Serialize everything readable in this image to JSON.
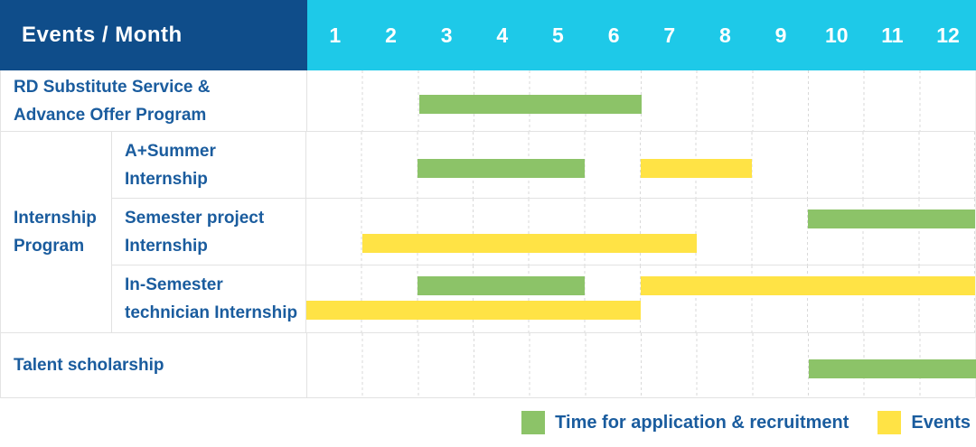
{
  "header": {
    "title": "Events / Month",
    "months": [
      "1",
      "2",
      "3",
      "4",
      "5",
      "6",
      "7",
      "8",
      "9",
      "10",
      "11",
      "12"
    ]
  },
  "colors": {
    "header_bg": "#0F4D8A",
    "months_bg": "#1EC9E8",
    "green": "#8CC368",
    "yellow": "#FFE345",
    "label_text": "#1A5C9E",
    "grid_line": "#D9D9D9"
  },
  "group": {
    "label_lines": [
      "Internship",
      "Program"
    ]
  },
  "rows": [
    {
      "id": "rd-substitute",
      "lines": 1,
      "label_lines": [
        "RD Substitute Service &",
        "Advance Offer Program"
      ],
      "bars": [
        {
          "type": "green",
          "start": 3,
          "end": 6,
          "line": 0
        }
      ]
    },
    {
      "id": "a-plus-summer",
      "lines": 1,
      "label_lines": [
        "A+Summer",
        "Internship"
      ],
      "bars": [
        {
          "type": "green",
          "start": 3,
          "end": 5,
          "line": 0
        },
        {
          "type": "yellow",
          "start": 7,
          "end": 8,
          "line": 0
        }
      ]
    },
    {
      "id": "semester-project",
      "lines": 2,
      "label_lines": [
        "Semester project",
        "Internship"
      ],
      "bars": [
        {
          "type": "green",
          "start": 10,
          "end": 12,
          "line": 0
        },
        {
          "type": "yellow",
          "start": 2,
          "end": 7,
          "line": 1
        }
      ]
    },
    {
      "id": "in-semester-technician",
      "lines": 2,
      "label_lines": [
        "In-Semester",
        "technician Internship"
      ],
      "bars": [
        {
          "type": "green",
          "start": 3,
          "end": 5,
          "line": 0
        },
        {
          "type": "yellow",
          "start": 7,
          "end": 12,
          "line": 0
        },
        {
          "type": "yellow",
          "start": 1,
          "end": 6,
          "line": 1
        }
      ]
    },
    {
      "id": "talent-scholarship",
      "lines": 1,
      "label_lines": [
        "Talent scholarship"
      ],
      "bars": [
        {
          "type": "green",
          "start": 10,
          "end": 12,
          "line": 0
        }
      ]
    }
  ],
  "legend": {
    "items": [
      {
        "key": "green",
        "label": "Time for application & recruitment"
      },
      {
        "key": "yellow",
        "label": "Events"
      }
    ]
  },
  "chart_data": {
    "type": "gantt",
    "title": "Events / Month",
    "x_axis": {
      "label": "Month",
      "ticks": [
        1,
        2,
        3,
        4,
        5,
        6,
        7,
        8,
        9,
        10,
        11,
        12
      ],
      "range": [
        1,
        12
      ]
    },
    "rows": [
      {
        "group": null,
        "task": "RD Substitute Service & Advance Offer Program",
        "spans": [
          {
            "kind": "application_recruitment",
            "months": [
              3,
              6
            ]
          }
        ]
      },
      {
        "group": "Internship Program",
        "task": "A+Summer Internship",
        "spans": [
          {
            "kind": "application_recruitment",
            "months": [
              3,
              5
            ]
          },
          {
            "kind": "event",
            "months": [
              7,
              8
            ]
          }
        ]
      },
      {
        "group": "Internship Program",
        "task": "Semester project Internship",
        "spans": [
          {
            "kind": "application_recruitment",
            "months": [
              10,
              12
            ]
          },
          {
            "kind": "event",
            "months": [
              2,
              7
            ]
          }
        ]
      },
      {
        "group": "Internship Program",
        "task": "In-Semester technician Internship",
        "spans": [
          {
            "kind": "application_recruitment",
            "months": [
              3,
              5
            ]
          },
          {
            "kind": "event",
            "months": [
              1,
              6
            ]
          },
          {
            "kind": "event",
            "months": [
              7,
              12
            ]
          }
        ]
      },
      {
        "group": null,
        "task": "Talent scholarship",
        "spans": [
          {
            "kind": "application_recruitment",
            "months": [
              10,
              12
            ]
          }
        ]
      }
    ],
    "legend": [
      {
        "label": "Time for application & recruitment",
        "color": "#8CC368"
      },
      {
        "label": "Events",
        "color": "#FFE345"
      }
    ],
    "layout": {
      "grid": "dotted-vertical-month-lines",
      "legend_position": "bottom-right"
    }
  }
}
